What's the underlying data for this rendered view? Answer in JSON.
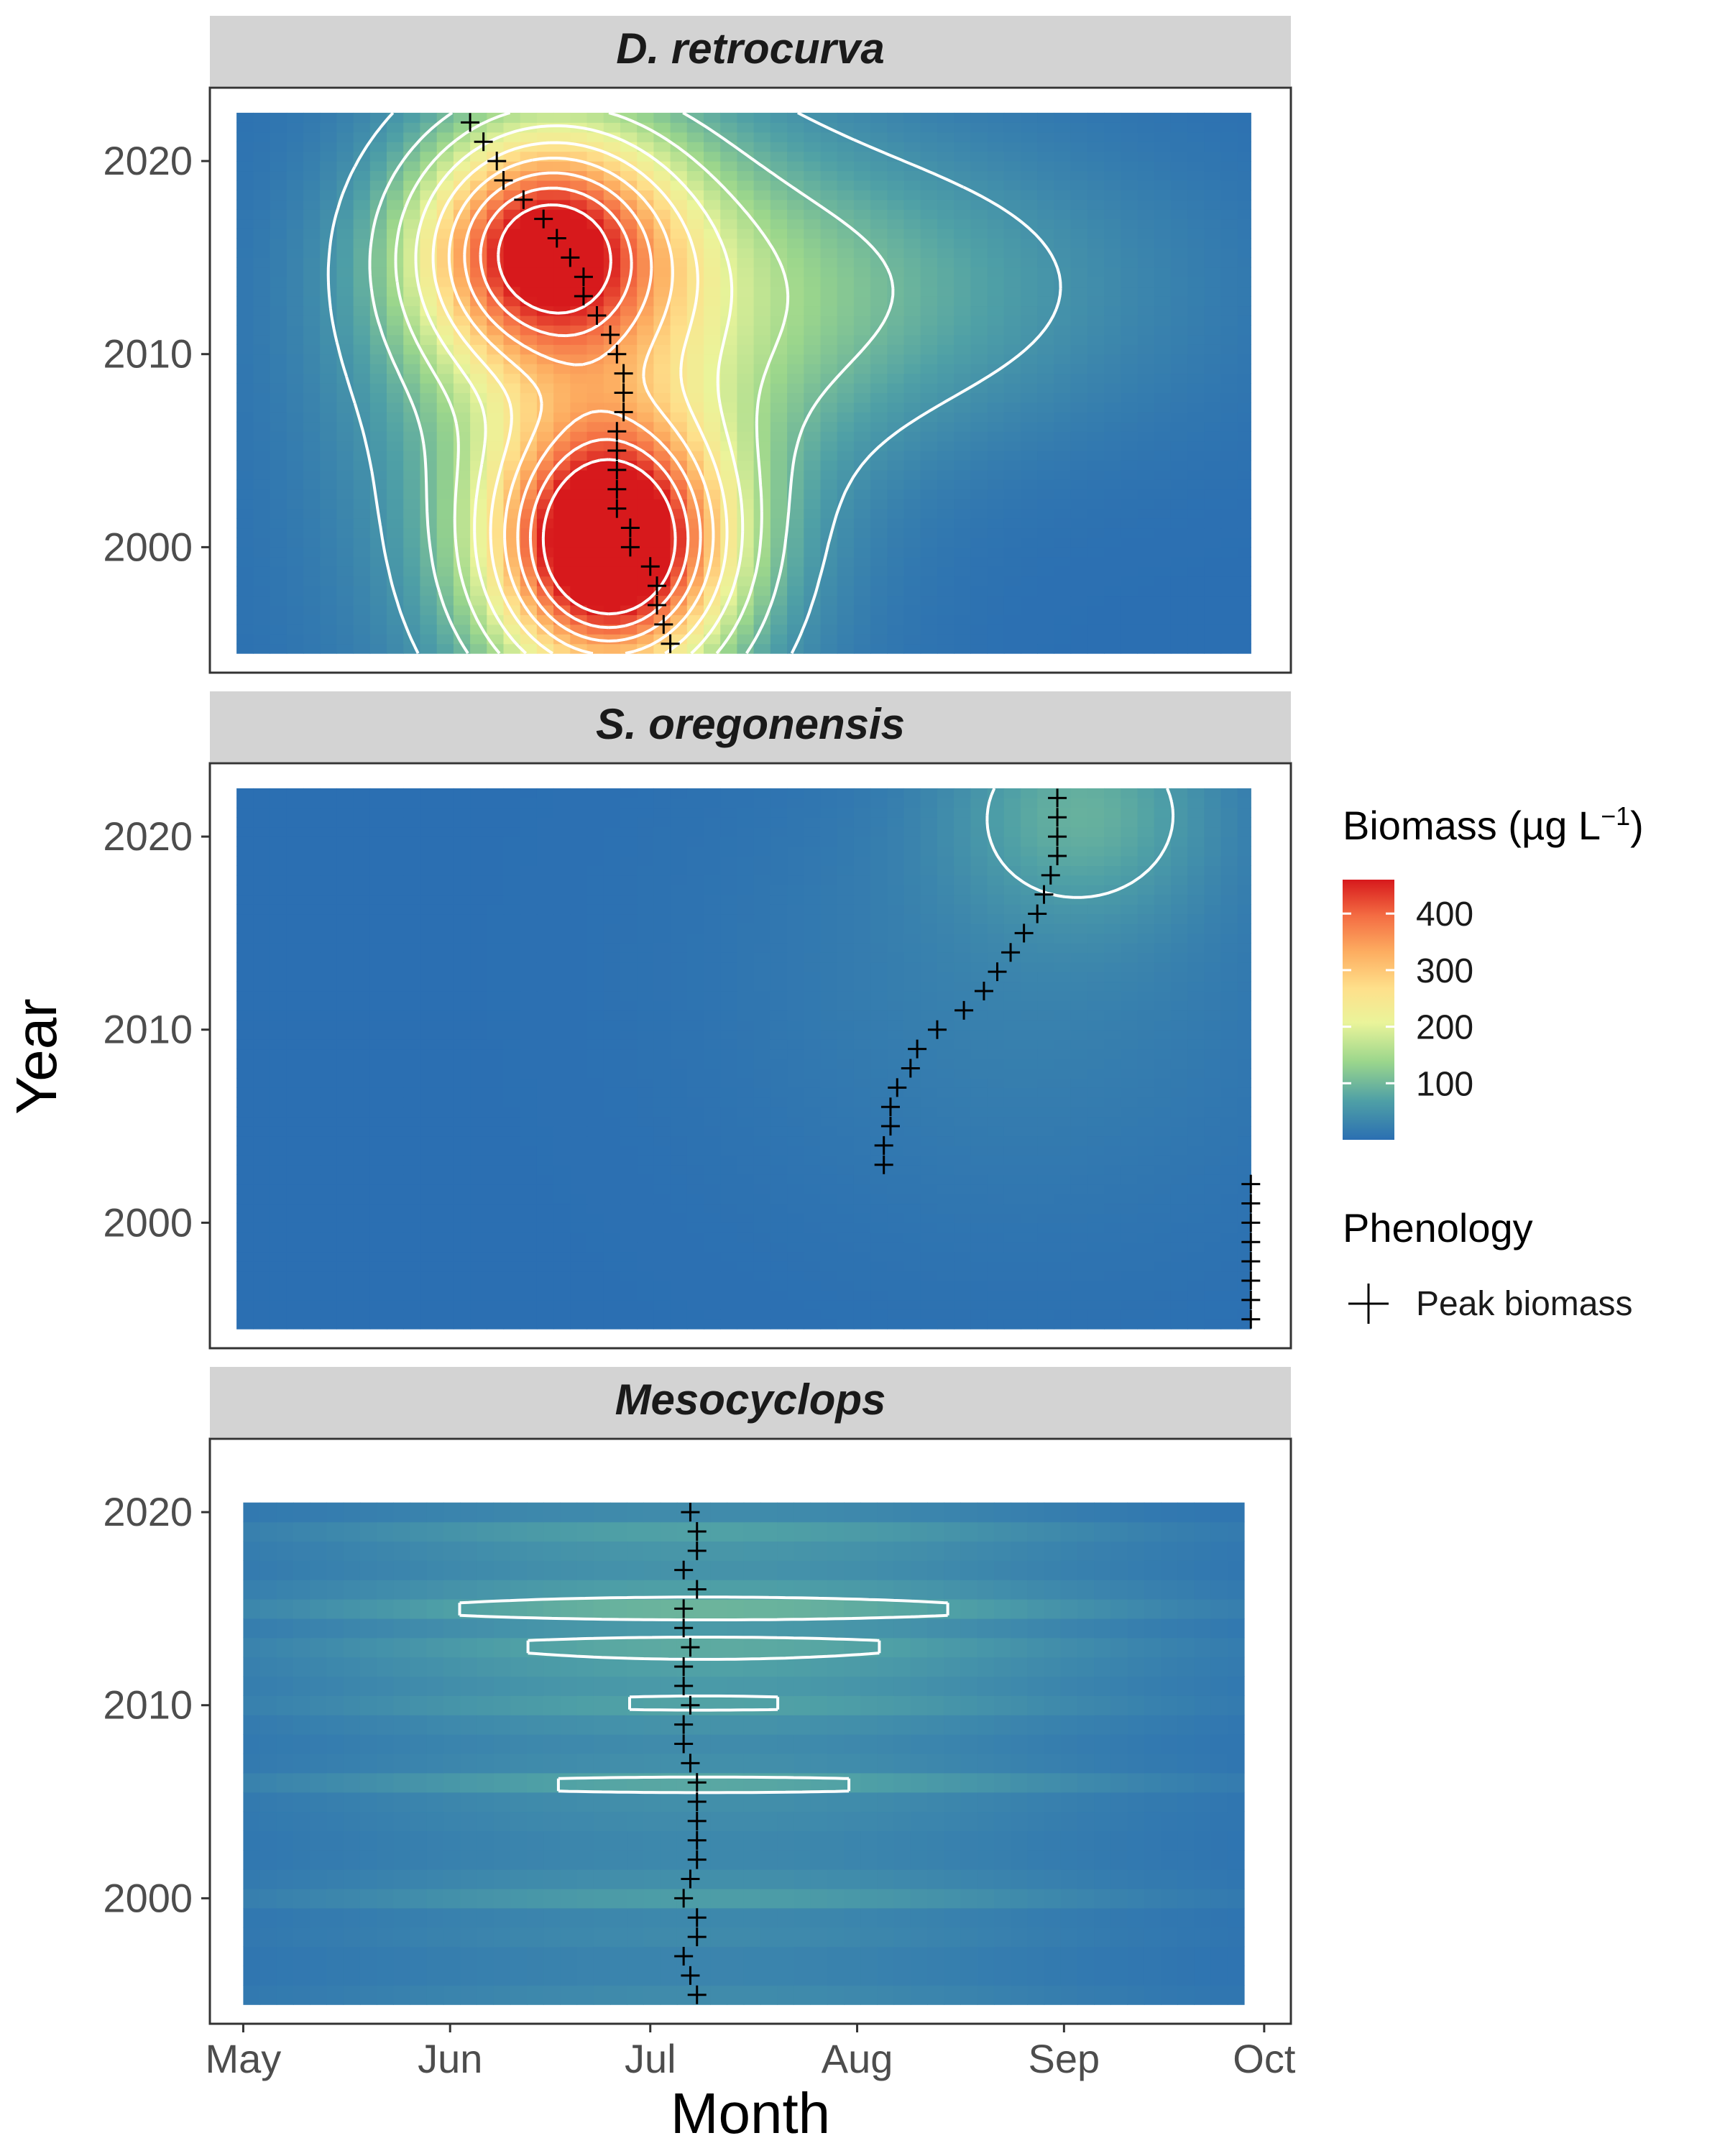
{
  "chart_data": {
    "type": "heatmap",
    "xlabel": "Month",
    "ylabel": "Year",
    "x_ticks": [
      "May",
      "Jun",
      "Jul",
      "Aug",
      "Sep",
      "Oct"
    ],
    "x_tick_days": [
      121,
      152,
      182,
      213,
      244,
      274
    ],
    "xlim_days": [
      116,
      278
    ],
    "y_ticks": [
      2000,
      2010,
      2020
    ],
    "ylim": [
      1993.5,
      2023.8
    ],
    "colorscale": {
      "title_main": "Biomass (µg L",
      "title_sup": "−1",
      "title_close": ")",
      "ticks": [
        100,
        200,
        300,
        400
      ],
      "range": [
        0,
        460
      ],
      "colors": [
        "#2b6fb2",
        "#4fa0a6",
        "#9bd68c",
        "#eaf49a",
        "#fee08b",
        "#fdae61",
        "#f46d43",
        "#d7191c"
      ]
    },
    "legend": {
      "title": "Phenology",
      "items": [
        {
          "label": "Peak biomass",
          "symbol": "+"
        }
      ]
    },
    "panels": [
      {
        "title": "D. retrocurva",
        "x_range_days": [
          120,
          272
        ],
        "y_range": [
          1994.5,
          2022.5
        ],
        "bands": false,
        "blobs": [
          {
            "day": 176,
            "year": 2000,
            "sx": 12,
            "sy": 4.5,
            "amp": 480
          },
          {
            "day": 166,
            "year": 2015.5,
            "sx": 13,
            "sy": 4.2,
            "amp": 370
          },
          {
            "day": 174,
            "year": 2007.5,
            "sx": 22,
            "sy": 12,
            "amp": 140
          },
          {
            "day": 205,
            "year": 2013.5,
            "sx": 35,
            "sy": 5.5,
            "amp": 90
          }
        ],
        "peak_biomass": [
          {
            "day": 185,
            "year": 1995
          },
          {
            "day": 184,
            "year": 1996
          },
          {
            "day": 183,
            "year": 1997
          },
          {
            "day": 183,
            "year": 1998
          },
          {
            "day": 182,
            "year": 1999
          },
          {
            "day": 179,
            "year": 2000
          },
          {
            "day": 179,
            "year": 2001
          },
          {
            "day": 177,
            "year": 2002
          },
          {
            "day": 177,
            "year": 2003
          },
          {
            "day": 177,
            "year": 2004
          },
          {
            "day": 177,
            "year": 2005
          },
          {
            "day": 177,
            "year": 2006
          },
          {
            "day": 178,
            "year": 2007
          },
          {
            "day": 178,
            "year": 2008
          },
          {
            "day": 178,
            "year": 2009
          },
          {
            "day": 177,
            "year": 2010
          },
          {
            "day": 176,
            "year": 2011
          },
          {
            "day": 174,
            "year": 2012
          },
          {
            "day": 172,
            "year": 2013
          },
          {
            "day": 172,
            "year": 2014
          },
          {
            "day": 170,
            "year": 2015
          },
          {
            "day": 168,
            "year": 2016
          },
          {
            "day": 166,
            "year": 2017
          },
          {
            "day": 163,
            "year": 2018
          },
          {
            "day": 160,
            "year": 2019
          },
          {
            "day": 159,
            "year": 2020
          },
          {
            "day": 157,
            "year": 2021
          },
          {
            "day": 155,
            "year": 2022
          }
        ]
      },
      {
        "title": "S. oregonensis",
        "x_range_days": [
          120,
          272
        ],
        "y_range": [
          1994.5,
          2022.5
        ],
        "bands": false,
        "blobs": [
          {
            "day": 247,
            "year": 2021.5,
            "sx": 14,
            "sy": 4,
            "amp": 75
          },
          {
            "day": 238,
            "year": 2013,
            "sx": 30,
            "sy": 9,
            "amp": 25
          }
        ],
        "peak_biomass": [
          {
            "day": 272,
            "year": 1995
          },
          {
            "day": 272,
            "year": 1996
          },
          {
            "day": 272,
            "year": 1997
          },
          {
            "day": 272,
            "year": 1998
          },
          {
            "day": 272,
            "year": 1999
          },
          {
            "day": 272,
            "year": 2000
          },
          {
            "day": 272,
            "year": 2001
          },
          {
            "day": 272,
            "year": 2002
          },
          {
            "day": 217,
            "year": 2003
          },
          {
            "day": 217,
            "year": 2004
          },
          {
            "day": 218,
            "year": 2005
          },
          {
            "day": 218,
            "year": 2006
          },
          {
            "day": 219,
            "year": 2007
          },
          {
            "day": 221,
            "year": 2008
          },
          {
            "day": 222,
            "year": 2009
          },
          {
            "day": 225,
            "year": 2010
          },
          {
            "day": 229,
            "year": 2011
          },
          {
            "day": 232,
            "year": 2012
          },
          {
            "day": 234,
            "year": 2013
          },
          {
            "day": 236,
            "year": 2014
          },
          {
            "day": 238,
            "year": 2015
          },
          {
            "day": 240,
            "year": 2016
          },
          {
            "day": 241,
            "year": 2017
          },
          {
            "day": 242,
            "year": 2018
          },
          {
            "day": 243,
            "year": 2019
          },
          {
            "day": 243,
            "year": 2020
          },
          {
            "day": 243,
            "year": 2021
          },
          {
            "day": 243,
            "year": 2022
          }
        ]
      },
      {
        "title": "Mesocyclops",
        "x_range_days": [
          121,
          271
        ],
        "y_range": [
          1994.5,
          2020.5
        ],
        "bands": true,
        "band_center_day": 190,
        "band_width_days": 26,
        "band_amp_by_year": {
          "1995": 40,
          "1996": 30,
          "1997": 30,
          "1998": 38,
          "1999": 35,
          "2000": 65,
          "2001": 45,
          "2002": 35,
          "2003": 35,
          "2004": 40,
          "2005": 45,
          "2006": 78,
          "2007": 45,
          "2008": 40,
          "2009": 50,
          "2010": 72,
          "2011": 60,
          "2012": 70,
          "2013": 82,
          "2014": 60,
          "2015": 95,
          "2016": 68,
          "2017": 50,
          "2018": 55,
          "2019": 70,
          "2020": 40
        },
        "peak_biomass": [
          {
            "day": 189,
            "year": 1995
          },
          {
            "day": 188,
            "year": 1996
          },
          {
            "day": 187,
            "year": 1997
          },
          {
            "day": 189,
            "year": 1998
          },
          {
            "day": 189,
            "year": 1999
          },
          {
            "day": 187,
            "year": 2000
          },
          {
            "day": 188,
            "year": 2001
          },
          {
            "day": 189,
            "year": 2002
          },
          {
            "day": 189,
            "year": 2003
          },
          {
            "day": 189,
            "year": 2004
          },
          {
            "day": 189,
            "year": 2005
          },
          {
            "day": 189,
            "year": 2006
          },
          {
            "day": 188,
            "year": 2007
          },
          {
            "day": 187,
            "year": 2008
          },
          {
            "day": 187,
            "year": 2009
          },
          {
            "day": 188,
            "year": 2010
          },
          {
            "day": 187,
            "year": 2011
          },
          {
            "day": 187,
            "year": 2012
          },
          {
            "day": 188,
            "year": 2013
          },
          {
            "day": 187,
            "year": 2014
          },
          {
            "day": 187,
            "year": 2015
          },
          {
            "day": 189,
            "year": 2016
          },
          {
            "day": 187,
            "year": 2017
          },
          {
            "day": 189,
            "year": 2018
          },
          {
            "day": 189,
            "year": 2019
          },
          {
            "day": 188,
            "year": 2020
          }
        ]
      }
    ]
  }
}
